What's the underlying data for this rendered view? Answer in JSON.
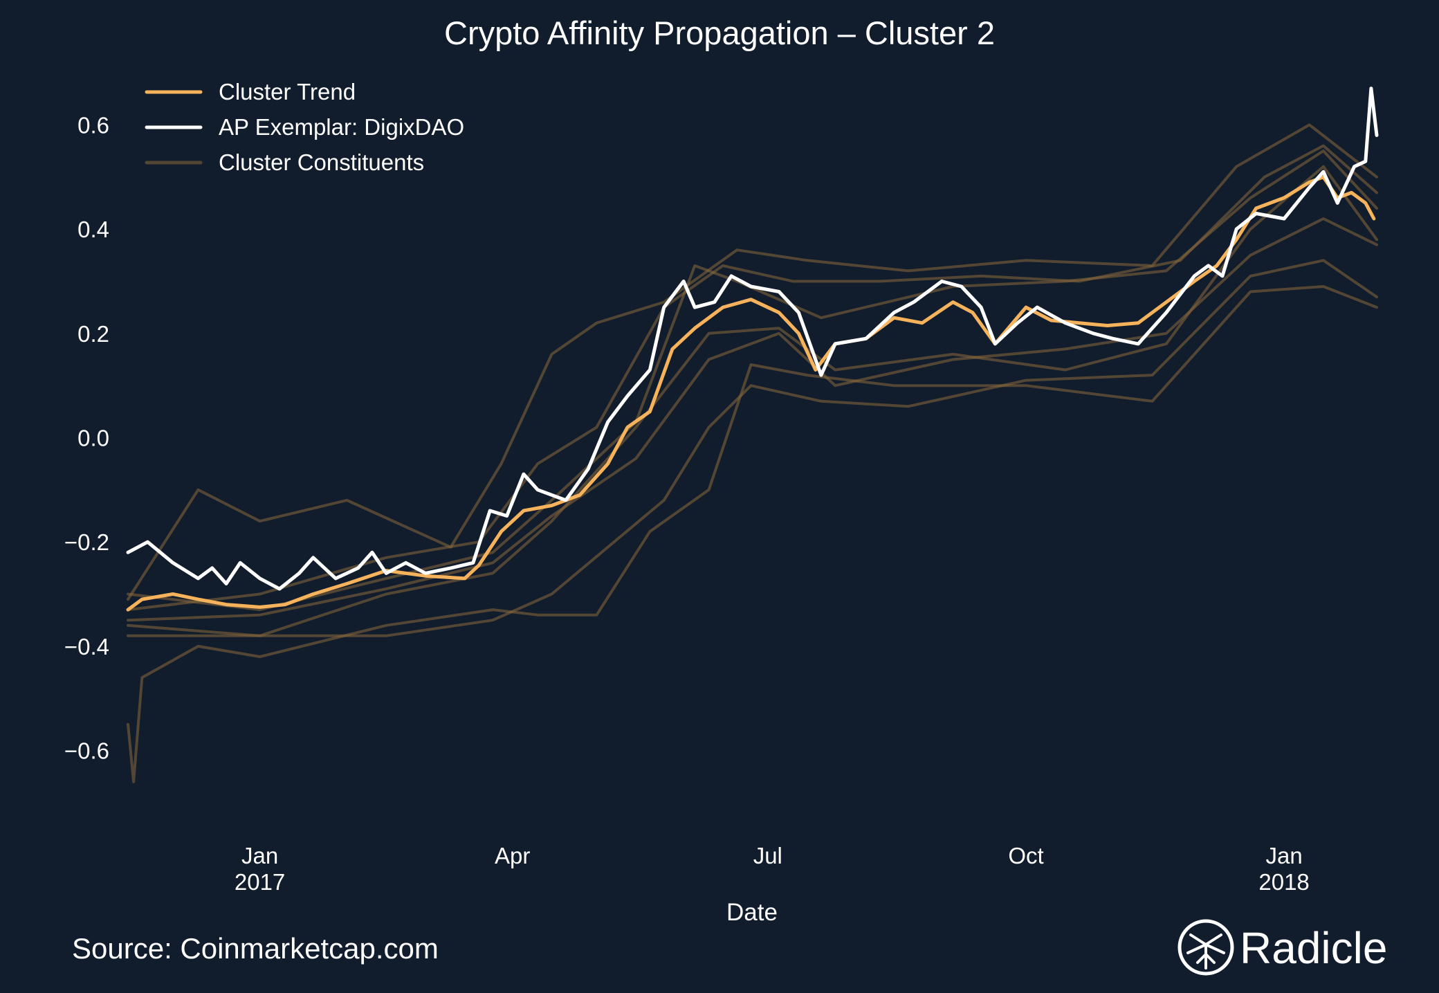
{
  "chart_data": {
    "type": "line",
    "title": "Crypto Affinity Propagation – Cluster 2",
    "xlabel": "Date",
    "ylabel": "",
    "ylim": [
      -0.72,
      0.72
    ],
    "xlim": [
      "2016-11-15",
      "2018-02-03"
    ],
    "grid": false,
    "legend_position": "top-left",
    "y_ticks": [
      {
        "value": -0.6,
        "label": "−0.6"
      },
      {
        "value": -0.4,
        "label": "−0.4"
      },
      {
        "value": -0.2,
        "label": "−0.2"
      },
      {
        "value": 0.0,
        "label": "0.0"
      },
      {
        "value": 0.2,
        "label": "0.2"
      },
      {
        "value": 0.4,
        "label": "0.4"
      },
      {
        "value": 0.6,
        "label": "0.6"
      }
    ],
    "x_ticks": [
      {
        "date": "2017-01-01",
        "label": "Jan",
        "sublabel": "2017"
      },
      {
        "date": "2017-04-01",
        "label": "Apr",
        "sublabel": ""
      },
      {
        "date": "2017-07-01",
        "label": "Jul",
        "sublabel": ""
      },
      {
        "date": "2017-10-01",
        "label": "Oct",
        "sublabel": ""
      },
      {
        "date": "2018-01-01",
        "label": "Jan",
        "sublabel": "2018"
      }
    ],
    "legend": [
      {
        "label": "Cluster Trend",
        "color": "#f7b35b",
        "opacity": 1.0
      },
      {
        "label": "AP Exemplar: DigixDAO",
        "color": "#ffffff",
        "opacity": 1.0
      },
      {
        "label": "Cluster Constituents",
        "color": "#8a6a3c",
        "opacity": 0.55
      }
    ],
    "series": [
      {
        "name": "Cluster Trend",
        "role": "trend",
        "color": "#f7b35b",
        "points": [
          [
            "2016-11-15",
            -0.33
          ],
          [
            "2016-11-20",
            -0.31
          ],
          [
            "2016-12-01",
            -0.3
          ],
          [
            "2016-12-10",
            -0.31
          ],
          [
            "2016-12-20",
            -0.32
          ],
          [
            "2017-01-01",
            -0.325
          ],
          [
            "2017-01-10",
            -0.32
          ],
          [
            "2017-01-20",
            -0.3
          ],
          [
            "2017-02-01",
            -0.28
          ],
          [
            "2017-02-15",
            -0.255
          ],
          [
            "2017-03-01",
            -0.265
          ],
          [
            "2017-03-15",
            -0.27
          ],
          [
            "2017-03-20",
            -0.245
          ],
          [
            "2017-03-28",
            -0.18
          ],
          [
            "2017-04-05",
            -0.14
          ],
          [
            "2017-04-15",
            -0.13
          ],
          [
            "2017-04-25",
            -0.11
          ],
          [
            "2017-05-05",
            -0.05
          ],
          [
            "2017-05-12",
            0.02
          ],
          [
            "2017-05-20",
            0.05
          ],
          [
            "2017-05-28",
            0.17
          ],
          [
            "2017-06-05",
            0.21
          ],
          [
            "2017-06-15",
            0.25
          ],
          [
            "2017-06-25",
            0.265
          ],
          [
            "2017-07-05",
            0.24
          ],
          [
            "2017-07-12",
            0.2
          ],
          [
            "2017-07-18",
            0.13
          ],
          [
            "2017-07-25",
            0.18
          ],
          [
            "2017-08-05",
            0.19
          ],
          [
            "2017-08-15",
            0.23
          ],
          [
            "2017-08-25",
            0.22
          ],
          [
            "2017-09-05",
            0.26
          ],
          [
            "2017-09-12",
            0.24
          ],
          [
            "2017-09-20",
            0.18
          ],
          [
            "2017-10-01",
            0.25
          ],
          [
            "2017-10-10",
            0.225
          ],
          [
            "2017-10-20",
            0.22
          ],
          [
            "2017-10-30",
            0.215
          ],
          [
            "2017-11-10",
            0.22
          ],
          [
            "2017-11-20",
            0.26
          ],
          [
            "2017-11-30",
            0.3
          ],
          [
            "2017-12-08",
            0.33
          ],
          [
            "2017-12-15",
            0.38
          ],
          [
            "2017-12-22",
            0.44
          ],
          [
            "2018-01-01",
            0.46
          ],
          [
            "2018-01-10",
            0.49
          ],
          [
            "2018-01-15",
            0.5
          ],
          [
            "2018-01-20",
            0.46
          ],
          [
            "2018-01-25",
            0.47
          ],
          [
            "2018-01-30",
            0.45
          ],
          [
            "2018-02-02",
            0.42
          ]
        ]
      },
      {
        "name": "AP Exemplar: DigixDAO",
        "role": "exemplar",
        "color": "#ffffff",
        "points": [
          [
            "2016-11-15",
            -0.22
          ],
          [
            "2016-11-22",
            -0.2
          ],
          [
            "2016-12-01",
            -0.24
          ],
          [
            "2016-12-10",
            -0.27
          ],
          [
            "2016-12-15",
            -0.25
          ],
          [
            "2016-12-20",
            -0.28
          ],
          [
            "2016-12-25",
            -0.24
          ],
          [
            "2017-01-01",
            -0.27
          ],
          [
            "2017-01-08",
            -0.29
          ],
          [
            "2017-01-15",
            -0.26
          ],
          [
            "2017-01-20",
            -0.23
          ],
          [
            "2017-01-28",
            -0.27
          ],
          [
            "2017-02-05",
            -0.25
          ],
          [
            "2017-02-10",
            -0.22
          ],
          [
            "2017-02-15",
            -0.26
          ],
          [
            "2017-02-22",
            -0.24
          ],
          [
            "2017-03-01",
            -0.26
          ],
          [
            "2017-03-10",
            -0.25
          ],
          [
            "2017-03-18",
            -0.24
          ],
          [
            "2017-03-24",
            -0.14
          ],
          [
            "2017-03-30",
            -0.15
          ],
          [
            "2017-04-05",
            -0.07
          ],
          [
            "2017-04-10",
            -0.1
          ],
          [
            "2017-04-20",
            -0.12
          ],
          [
            "2017-04-28",
            -0.06
          ],
          [
            "2017-05-05",
            0.03
          ],
          [
            "2017-05-12",
            0.08
          ],
          [
            "2017-05-20",
            0.13
          ],
          [
            "2017-05-25",
            0.25
          ],
          [
            "2017-06-01",
            0.3
          ],
          [
            "2017-06-05",
            0.25
          ],
          [
            "2017-06-12",
            0.26
          ],
          [
            "2017-06-18",
            0.31
          ],
          [
            "2017-06-25",
            0.29
          ],
          [
            "2017-07-05",
            0.28
          ],
          [
            "2017-07-12",
            0.24
          ],
          [
            "2017-07-20",
            0.12
          ],
          [
            "2017-07-25",
            0.18
          ],
          [
            "2017-08-05",
            0.19
          ],
          [
            "2017-08-15",
            0.24
          ],
          [
            "2017-08-22",
            0.26
          ],
          [
            "2017-09-01",
            0.3
          ],
          [
            "2017-09-08",
            0.29
          ],
          [
            "2017-09-15",
            0.25
          ],
          [
            "2017-09-20",
            0.18
          ],
          [
            "2017-09-28",
            0.22
          ],
          [
            "2017-10-05",
            0.25
          ],
          [
            "2017-10-15",
            0.22
          ],
          [
            "2017-10-25",
            0.2
          ],
          [
            "2017-11-01",
            0.19
          ],
          [
            "2017-11-10",
            0.18
          ],
          [
            "2017-11-20",
            0.24
          ],
          [
            "2017-11-30",
            0.31
          ],
          [
            "2017-12-05",
            0.33
          ],
          [
            "2017-12-10",
            0.31
          ],
          [
            "2017-12-15",
            0.4
          ],
          [
            "2017-12-22",
            0.43
          ],
          [
            "2018-01-01",
            0.42
          ],
          [
            "2018-01-10",
            0.48
          ],
          [
            "2018-01-15",
            0.51
          ],
          [
            "2018-01-20",
            0.45
          ],
          [
            "2018-01-26",
            0.52
          ],
          [
            "2018-01-30",
            0.53
          ],
          [
            "2018-02-01",
            0.67
          ],
          [
            "2018-02-03",
            0.58
          ]
        ]
      }
    ],
    "constituents": [
      {
        "name": "Constituent 1",
        "points": [
          [
            "2016-11-15",
            -0.36
          ],
          [
            "2017-01-01",
            -0.38
          ],
          [
            "2017-02-15",
            -0.3
          ],
          [
            "2017-03-25",
            -0.26
          ],
          [
            "2017-04-15",
            -0.16
          ],
          [
            "2017-05-15",
            0.02
          ],
          [
            "2017-06-10",
            0.2
          ],
          [
            "2017-07-05",
            0.21
          ],
          [
            "2017-07-25",
            0.13
          ],
          [
            "2017-09-05",
            0.16
          ],
          [
            "2017-10-15",
            0.13
          ],
          [
            "2017-11-20",
            0.18
          ],
          [
            "2017-12-20",
            0.4
          ],
          [
            "2018-01-15",
            0.52
          ],
          [
            "2018-02-03",
            0.38
          ]
        ]
      },
      {
        "name": "Constituent 2",
        "points": [
          [
            "2016-11-15",
            -0.31
          ],
          [
            "2016-12-10",
            -0.1
          ],
          [
            "2017-01-01",
            -0.16
          ],
          [
            "2017-02-01",
            -0.12
          ],
          [
            "2017-03-10",
            -0.21
          ],
          [
            "2017-03-28",
            -0.05
          ],
          [
            "2017-04-15",
            0.16
          ],
          [
            "2017-05-01",
            0.22
          ],
          [
            "2017-05-25",
            0.26
          ],
          [
            "2017-06-20",
            0.36
          ],
          [
            "2017-07-15",
            0.34
          ],
          [
            "2017-08-20",
            0.32
          ],
          [
            "2017-10-01",
            0.34
          ],
          [
            "2017-11-15",
            0.33
          ],
          [
            "2017-12-15",
            0.52
          ],
          [
            "2018-01-10",
            0.6
          ],
          [
            "2018-02-03",
            0.5
          ]
        ]
      },
      {
        "name": "Constituent 3",
        "points": [
          [
            "2016-11-15",
            -0.55
          ],
          [
            "2016-11-17",
            -0.66
          ],
          [
            "2016-11-20",
            -0.46
          ],
          [
            "2016-12-10",
            -0.4
          ],
          [
            "2017-01-01",
            -0.42
          ],
          [
            "2017-02-15",
            -0.36
          ],
          [
            "2017-03-25",
            -0.33
          ],
          [
            "2017-04-10",
            -0.34
          ],
          [
            "2017-05-01",
            -0.34
          ],
          [
            "2017-05-20",
            -0.18
          ],
          [
            "2017-06-10",
            -0.1
          ],
          [
            "2017-06-25",
            0.14
          ],
          [
            "2017-07-15",
            0.12
          ],
          [
            "2017-08-15",
            0.1
          ],
          [
            "2017-10-01",
            0.1
          ],
          [
            "2017-11-15",
            0.07
          ],
          [
            "2017-12-20",
            0.28
          ],
          [
            "2018-01-15",
            0.29
          ],
          [
            "2018-02-03",
            0.25
          ]
        ]
      },
      {
        "name": "Constituent 4",
        "points": [
          [
            "2016-11-15",
            -0.38
          ],
          [
            "2017-01-01",
            -0.38
          ],
          [
            "2017-02-15",
            -0.38
          ],
          [
            "2017-03-25",
            -0.35
          ],
          [
            "2017-04-15",
            -0.3
          ],
          [
            "2017-05-05",
            -0.21
          ],
          [
            "2017-05-25",
            -0.12
          ],
          [
            "2017-06-10",
            0.02
          ],
          [
            "2017-06-25",
            0.1
          ],
          [
            "2017-07-20",
            0.07
          ],
          [
            "2017-08-20",
            0.06
          ],
          [
            "2017-10-01",
            0.11
          ],
          [
            "2017-11-15",
            0.12
          ],
          [
            "2017-12-20",
            0.31
          ],
          [
            "2018-01-15",
            0.34
          ],
          [
            "2018-02-03",
            0.27
          ]
        ]
      },
      {
        "name": "Constituent 5",
        "points": [
          [
            "2016-11-15",
            -0.3
          ],
          [
            "2017-01-01",
            -0.33
          ],
          [
            "2017-02-15",
            -0.27
          ],
          [
            "2017-03-25",
            -0.22
          ],
          [
            "2017-04-15",
            -0.12
          ],
          [
            "2017-05-15",
            0.03
          ],
          [
            "2017-06-05",
            0.33
          ],
          [
            "2017-06-20",
            0.3
          ],
          [
            "2017-07-20",
            0.23
          ],
          [
            "2017-09-05",
            0.29
          ],
          [
            "2017-10-15",
            0.3
          ],
          [
            "2017-11-20",
            0.32
          ],
          [
            "2017-12-20",
            0.46
          ],
          [
            "2018-01-15",
            0.55
          ],
          [
            "2018-02-03",
            0.44
          ]
        ]
      },
      {
        "name": "Constituent 6",
        "points": [
          [
            "2016-11-15",
            -0.35
          ],
          [
            "2017-01-01",
            -0.34
          ],
          [
            "2017-02-15",
            -0.29
          ],
          [
            "2017-03-25",
            -0.24
          ],
          [
            "2017-04-15",
            -0.15
          ],
          [
            "2017-05-15",
            -0.04
          ],
          [
            "2017-06-10",
            0.15
          ],
          [
            "2017-07-05",
            0.2
          ],
          [
            "2017-07-25",
            0.1
          ],
          [
            "2017-09-05",
            0.15
          ],
          [
            "2017-10-15",
            0.17
          ],
          [
            "2017-11-20",
            0.2
          ],
          [
            "2017-12-20",
            0.35
          ],
          [
            "2018-01-15",
            0.42
          ],
          [
            "2018-02-03",
            0.37
          ]
        ]
      },
      {
        "name": "Constituent 7",
        "points": [
          [
            "2016-11-15",
            -0.33
          ],
          [
            "2017-01-01",
            -0.3
          ],
          [
            "2017-02-15",
            -0.23
          ],
          [
            "2017-03-20",
            -0.2
          ],
          [
            "2017-04-10",
            -0.05
          ],
          [
            "2017-05-01",
            0.02
          ],
          [
            "2017-05-25",
            0.25
          ],
          [
            "2017-06-15",
            0.33
          ],
          [
            "2017-07-10",
            0.3
          ],
          [
            "2017-08-10",
            0.3
          ],
          [
            "2017-09-15",
            0.31
          ],
          [
            "2017-10-20",
            0.3
          ],
          [
            "2017-11-25",
            0.34
          ],
          [
            "2017-12-25",
            0.5
          ],
          [
            "2018-01-15",
            0.56
          ],
          [
            "2018-02-03",
            0.47
          ]
        ]
      }
    ],
    "annotations": {
      "source": "Source: Coinmarketcap.com",
      "brand": "Radicle"
    }
  }
}
